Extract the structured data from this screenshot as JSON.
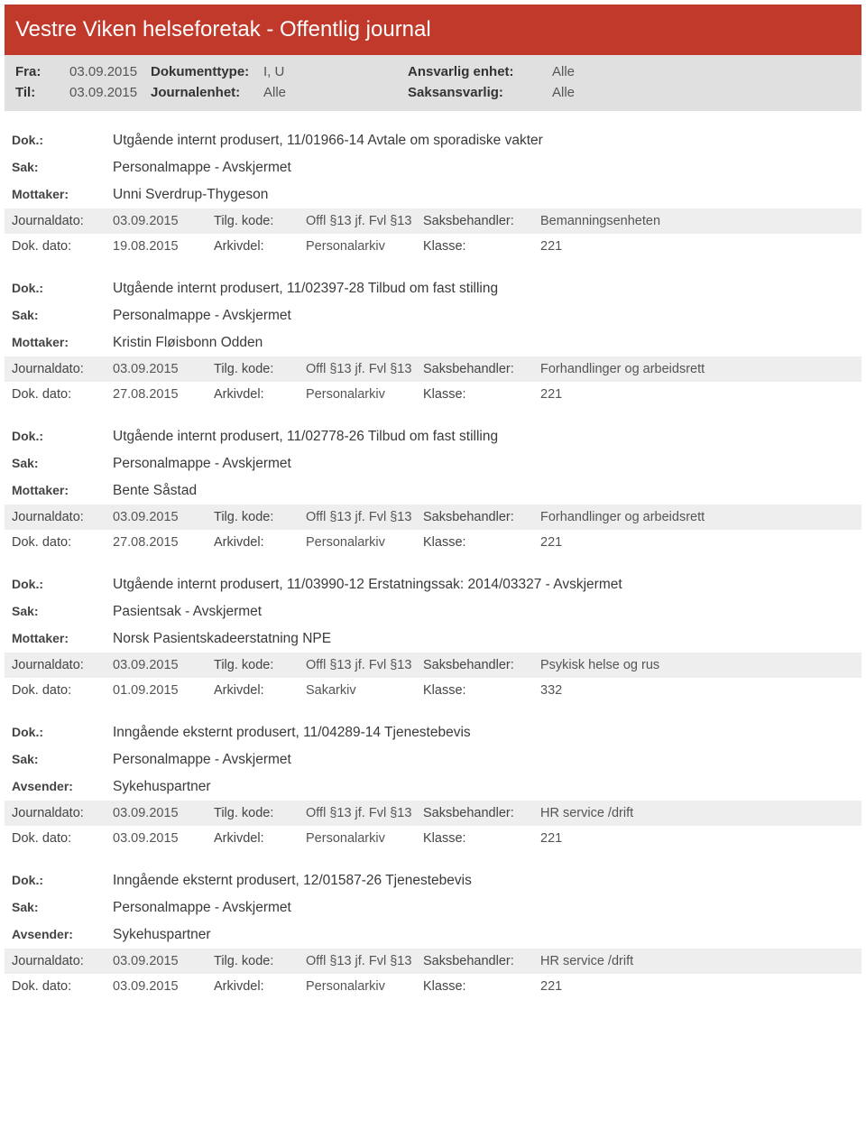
{
  "header": {
    "title": "Vestre Viken helseforetak - Offentlig journal"
  },
  "filters": {
    "fra_label": "Fra:",
    "fra_value": "03.09.2015",
    "til_label": "Til:",
    "til_value": "03.09.2015",
    "doktype_label": "Dokumenttype:",
    "doktype_value": "I, U",
    "journalenhet_label": "Journalenhet:",
    "journalenhet_value": "Alle",
    "ansvarlig_label": "Ansvarlig enhet:",
    "ansvarlig_value": "Alle",
    "saksansvarlig_label": "Saksansvarlig:",
    "saksansvarlig_value": "Alle"
  },
  "labels": {
    "dok": "Dok.:",
    "sak": "Sak:",
    "mottaker": "Mottaker:",
    "avsender": "Avsender:",
    "journaldato": "Journaldato:",
    "dokdato": "Dok. dato:",
    "tilgkode": "Tilg. kode:",
    "arkivdel": "Arkivdel:",
    "saksbehandler": "Saksbehandler:",
    "klasse": "Klasse:"
  },
  "entries": [
    {
      "dok": "Utgående internt produsert, 11/01966-14 Avtale om sporadiske vakter",
      "sak": "Personalmappe - Avskjermet",
      "party_label": "Mottaker:",
      "party": "Unni Sverdrup-Thygeson",
      "journaldato": "03.09.2015",
      "tilgkode": "Offl §13 jf. Fvl §13",
      "saksbehandler": "Bemanningsenheten",
      "dokdato": "19.08.2015",
      "arkivdel": "Personalarkiv",
      "klasse": "221"
    },
    {
      "dok": "Utgående internt produsert, 11/02397-28 Tilbud om fast stilling",
      "sak": "Personalmappe - Avskjermet",
      "party_label": "Mottaker:",
      "party": "Kristin Fløisbonn Odden",
      "journaldato": "03.09.2015",
      "tilgkode": "Offl §13 jf. Fvl §13",
      "saksbehandler": "Forhandlinger og arbeidsrett",
      "dokdato": "27.08.2015",
      "arkivdel": "Personalarkiv",
      "klasse": "221"
    },
    {
      "dok": "Utgående internt produsert, 11/02778-26 Tilbud om fast stilling",
      "sak": "Personalmappe - Avskjermet",
      "party_label": "Mottaker:",
      "party": "Bente Såstad",
      "journaldato": "03.09.2015",
      "tilgkode": "Offl §13 jf. Fvl §13",
      "saksbehandler": "Forhandlinger og arbeidsrett",
      "dokdato": "27.08.2015",
      "arkivdel": "Personalarkiv",
      "klasse": "221"
    },
    {
      "dok": "Utgående internt produsert, 11/03990-12 Erstatningssak: 2014/03327 - Avskjermet",
      "sak": "Pasientsak - Avskjermet",
      "party_label": "Mottaker:",
      "party": "Norsk Pasientskadeerstatning NPE",
      "journaldato": "03.09.2015",
      "tilgkode": "Offl §13 jf. Fvl §13",
      "saksbehandler": "Psykisk helse og rus",
      "dokdato": "01.09.2015",
      "arkivdel": "Sakarkiv",
      "klasse": "332"
    },
    {
      "dok": "Inngående eksternt produsert, 11/04289-14 Tjenestebevis",
      "sak": "Personalmappe - Avskjermet",
      "party_label": "Avsender:",
      "party": "Sykehuspartner",
      "journaldato": "03.09.2015",
      "tilgkode": "Offl §13 jf. Fvl §13",
      "saksbehandler": "HR service /drift",
      "dokdato": "03.09.2015",
      "arkivdel": "Personalarkiv",
      "klasse": "221"
    },
    {
      "dok": "Inngående eksternt produsert, 12/01587-26 Tjenestebevis",
      "sak": "Personalmappe - Avskjermet",
      "party_label": "Avsender:",
      "party": "Sykehuspartner",
      "journaldato": "03.09.2015",
      "tilgkode": "Offl §13 jf. Fvl §13",
      "saksbehandler": "HR service /drift",
      "dokdato": "03.09.2015",
      "arkivdel": "Personalarkiv",
      "klasse": "221"
    }
  ]
}
